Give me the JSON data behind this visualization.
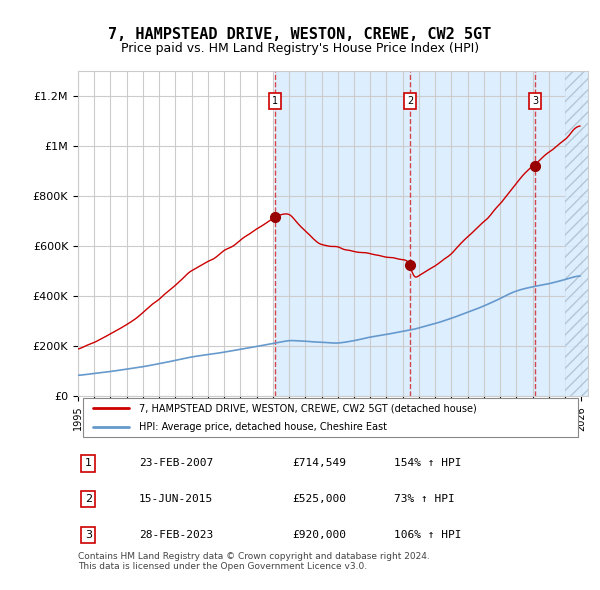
{
  "title": "7, HAMPSTEAD DRIVE, WESTON, CREWE, CW2 5GT",
  "subtitle": "Price paid vs. HM Land Registry's House Price Index (HPI)",
  "title_fontsize": 11,
  "subtitle_fontsize": 9,
  "ylim": [
    0,
    1300000
  ],
  "yticks": [
    0,
    200000,
    400000,
    600000,
    800000,
    1000000,
    1200000
  ],
  "ytick_labels": [
    "£0",
    "£200K",
    "£400K",
    "£600K",
    "£800K",
    "£1M",
    "£1.2M"
  ],
  "sale_dates": [
    "2007-02-23",
    "2015-06-15",
    "2023-02-28"
  ],
  "sale_prices": [
    714549,
    525000,
    920000
  ],
  "sale_labels": [
    "1",
    "2",
    "3"
  ],
  "sale_info": [
    [
      "1",
      "23-FEB-2007",
      "£714,549",
      "154% ↑ HPI"
    ],
    [
      "2",
      "15-JUN-2015",
      "£525,000",
      "73% ↑ HPI"
    ],
    [
      "3",
      "28-FEB-2023",
      "£920,000",
      "106% ↑ HPI"
    ]
  ],
  "legend_line1": "7, HAMPSTEAD DRIVE, WESTON, CREWE, CW2 5GT (detached house)",
  "legend_line2": "HPI: Average price, detached house, Cheshire East",
  "footer": "Contains HM Land Registry data © Crown copyright and database right 2024.\nThis data is licensed under the Open Government Licence v3.0.",
  "hpi_color": "#6699cc",
  "price_color": "#cc0000",
  "sale_point_color": "#990000",
  "background_color": "#ffffff",
  "grid_color": "#cccccc",
  "shade_color": "#ddeeff",
  "x_start_year": 1995,
  "x_end_year": 2026
}
